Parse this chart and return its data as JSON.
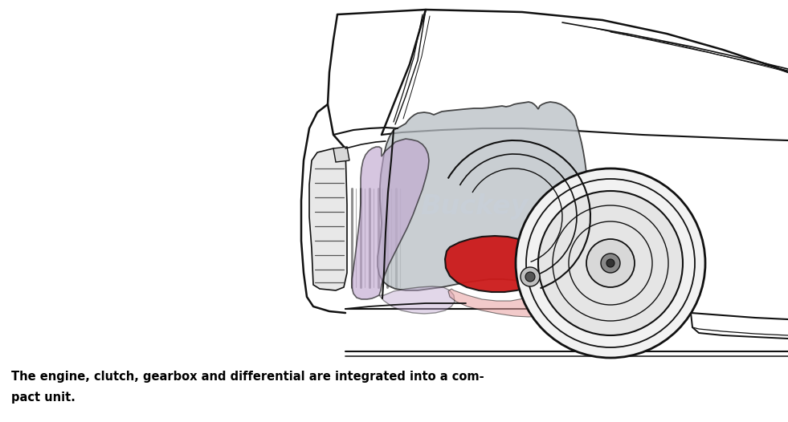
{
  "caption_line1": "The engine, clutch, gearbox and differential are integrated into a com-",
  "caption_line2": "pact unit.",
  "bg_color": "#ffffff",
  "line_color": "#111111",
  "gray_fill": "#b8bec4",
  "purple_fill": "#c0a8d0",
  "red_fill": "#cc1a1a",
  "light_red_fill": "#e8a0a0",
  "caption_color": "#000000",
  "watermark_color": "#c8d0dc",
  "fig_width": 9.81,
  "fig_height": 5.26,
  "dpi": 100
}
